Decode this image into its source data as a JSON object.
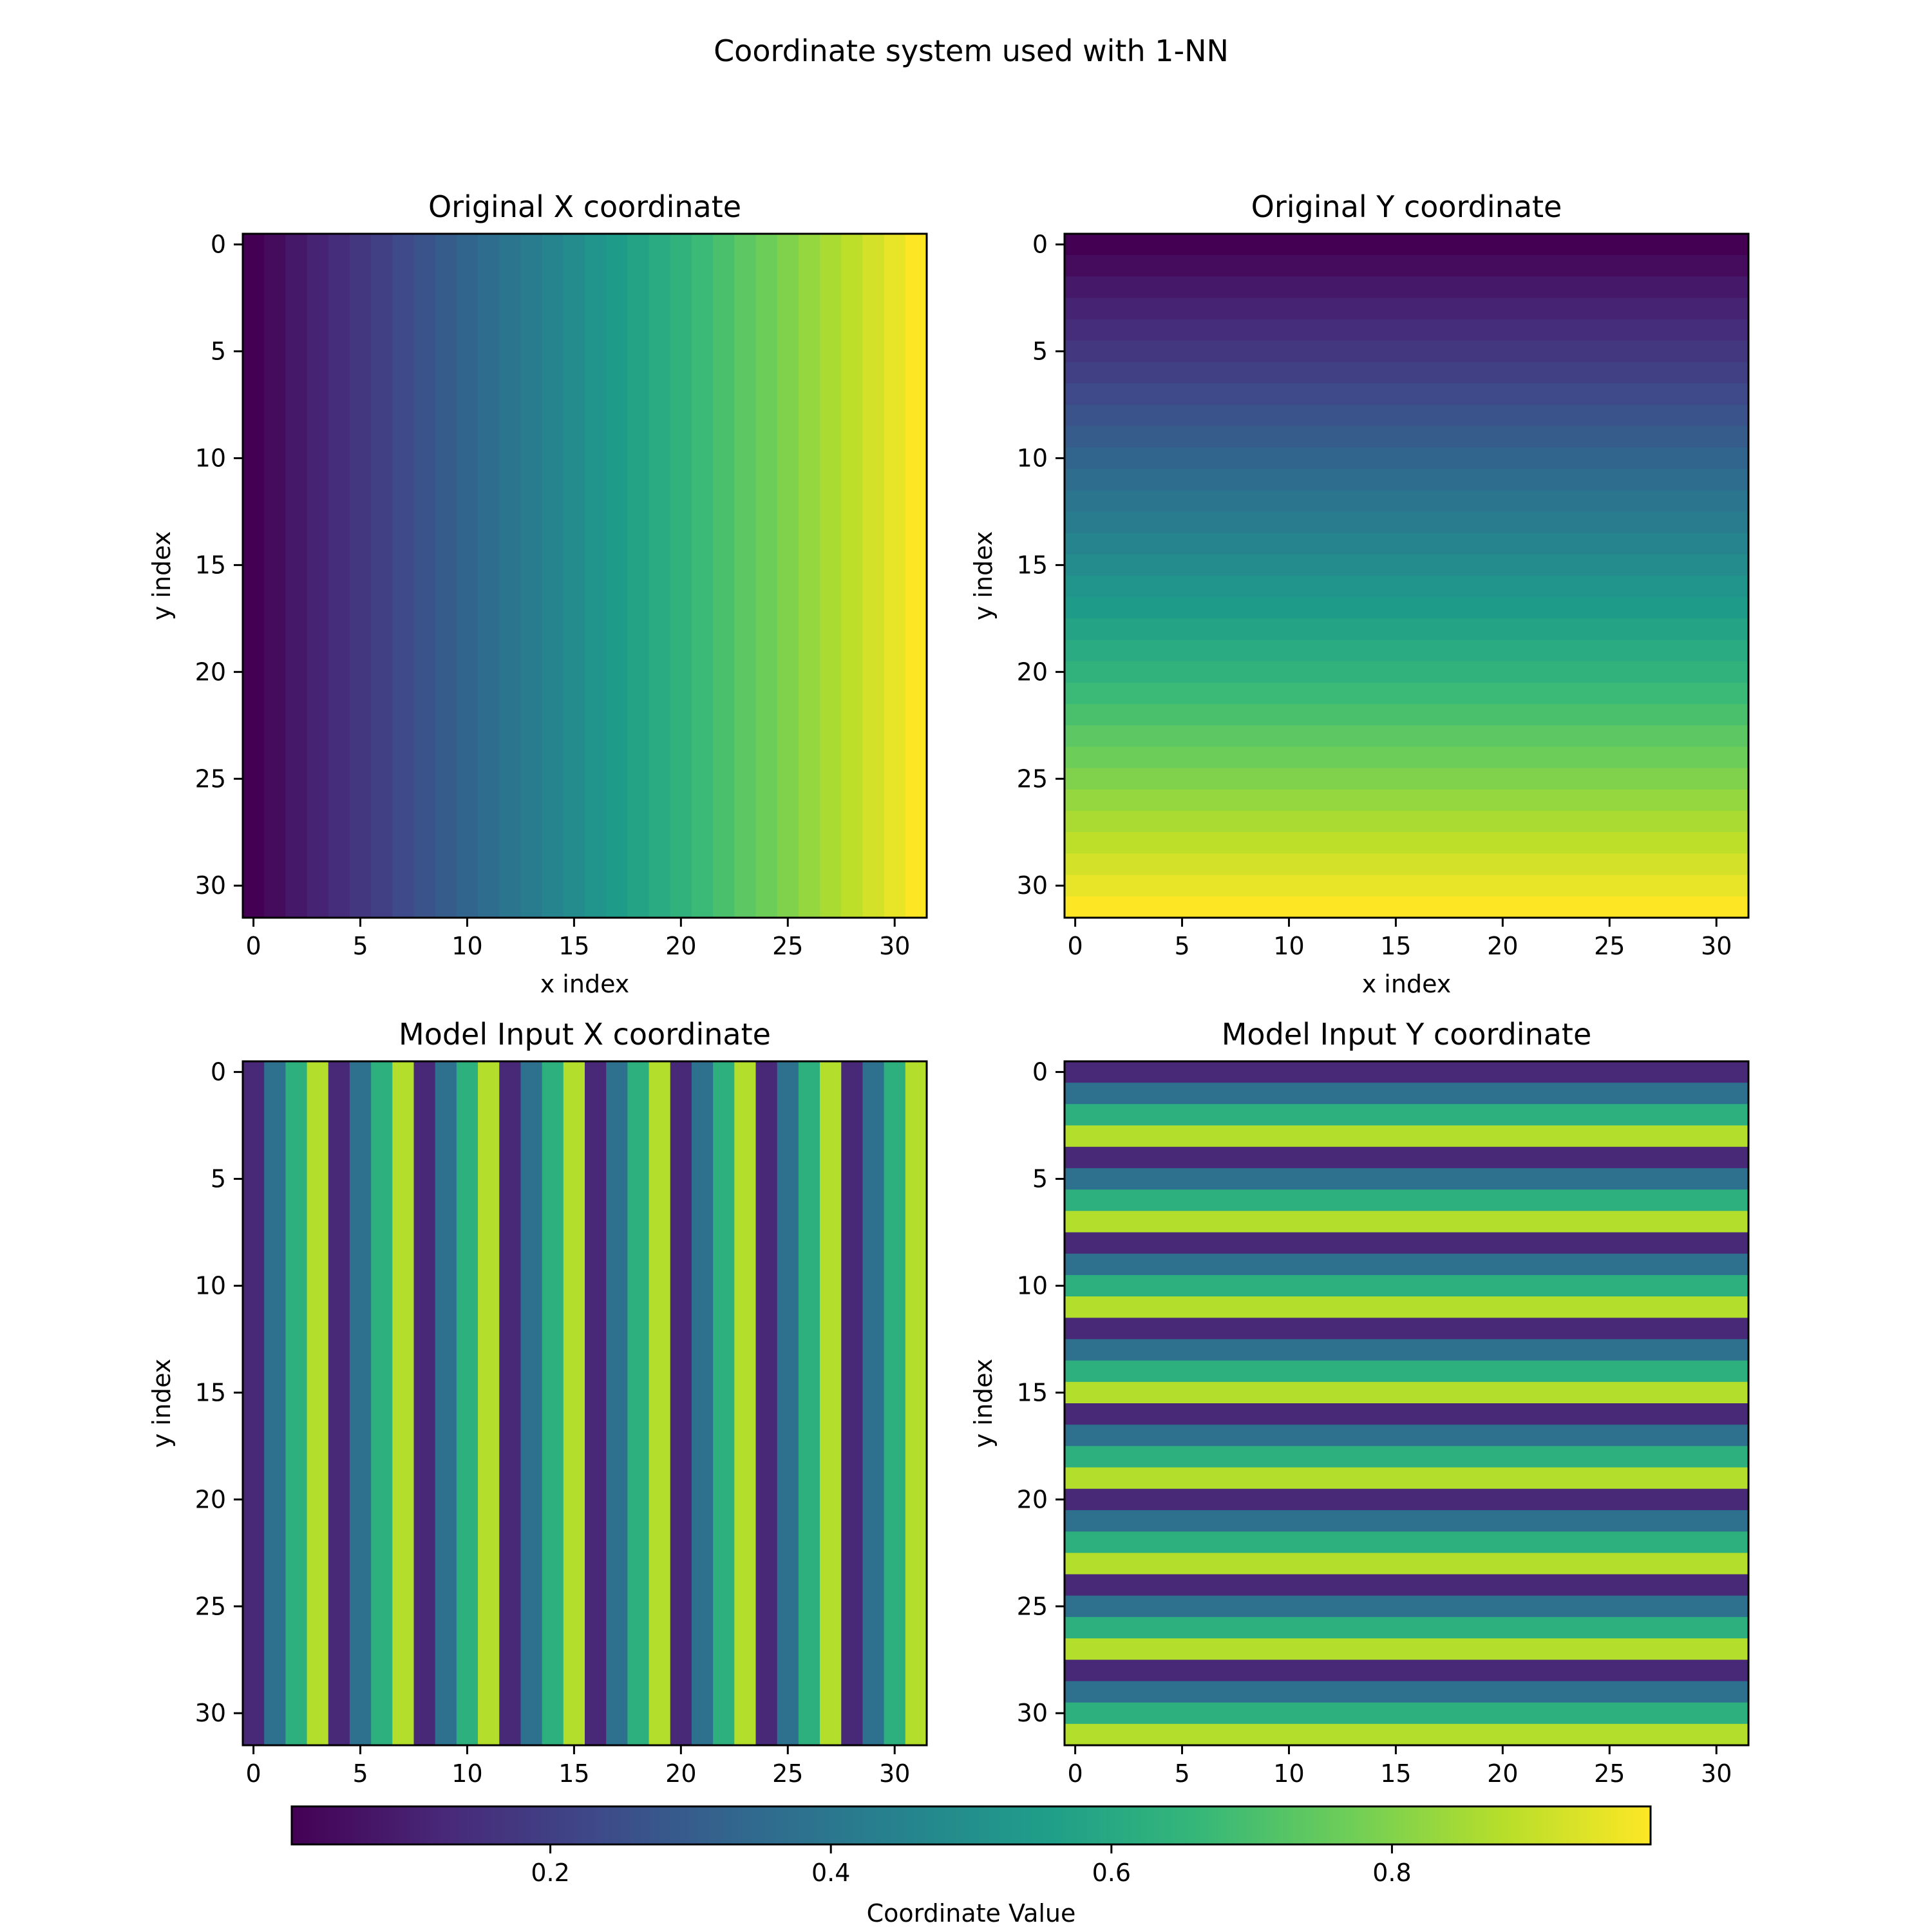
{
  "figure": {
    "title": "Coordinate system used with 1-NN"
  },
  "chart_data": [
    {
      "type": "heatmap",
      "title": "Original X coordinate",
      "xlabel": "x index",
      "ylabel": "y index",
      "grid_size": 32,
      "pattern": "columns",
      "formula": "value = (x + 0.5) / 32",
      "xlim": [
        -0.5,
        31.5
      ],
      "ylim": [
        31.5,
        -0.5
      ],
      "xticks": [
        0,
        5,
        10,
        15,
        20,
        25,
        30
      ],
      "yticks": [
        0,
        5,
        10,
        15,
        20,
        25,
        30
      ],
      "values": [
        0.015625,
        0.046875,
        0.078125,
        0.109375,
        0.140625,
        0.171875,
        0.203125,
        0.234375,
        0.265625,
        0.296875,
        0.328125,
        0.359375,
        0.390625,
        0.421875,
        0.453125,
        0.484375,
        0.515625,
        0.546875,
        0.578125,
        0.609375,
        0.640625,
        0.671875,
        0.703125,
        0.734375,
        0.765625,
        0.796875,
        0.828125,
        0.859375,
        0.890625,
        0.921875,
        0.953125,
        0.984375
      ]
    },
    {
      "type": "heatmap",
      "title": "Original Y coordinate",
      "xlabel": "x index",
      "ylabel": "y index",
      "grid_size": 32,
      "pattern": "rows",
      "formula": "value = (y + 0.5) / 32",
      "xlim": [
        -0.5,
        31.5
      ],
      "ylim": [
        31.5,
        -0.5
      ],
      "xticks": [
        0,
        5,
        10,
        15,
        20,
        25,
        30
      ],
      "yticks": [
        0,
        5,
        10,
        15,
        20,
        25,
        30
      ],
      "values": [
        0.015625,
        0.046875,
        0.078125,
        0.109375,
        0.140625,
        0.171875,
        0.203125,
        0.234375,
        0.265625,
        0.296875,
        0.328125,
        0.359375,
        0.390625,
        0.421875,
        0.453125,
        0.484375,
        0.515625,
        0.546875,
        0.578125,
        0.609375,
        0.640625,
        0.671875,
        0.703125,
        0.734375,
        0.765625,
        0.796875,
        0.828125,
        0.859375,
        0.890625,
        0.921875,
        0.953125,
        0.984375
      ]
    },
    {
      "type": "heatmap",
      "title": "Model Input X coordinate",
      "xlabel": "",
      "ylabel": "y index",
      "grid_size": 32,
      "pattern": "columns",
      "formula": "value = ((x mod 4) + 0.5) / 4",
      "xlim": [
        -0.5,
        31.5
      ],
      "ylim": [
        31.5,
        -0.5
      ],
      "xticks": [
        0,
        5,
        10,
        15,
        20,
        25,
        30
      ],
      "yticks": [
        0,
        5,
        10,
        15,
        20,
        25,
        30
      ],
      "values": [
        0.125,
        0.375,
        0.625,
        0.875,
        0.125,
        0.375,
        0.625,
        0.875,
        0.125,
        0.375,
        0.625,
        0.875,
        0.125,
        0.375,
        0.625,
        0.875,
        0.125,
        0.375,
        0.625,
        0.875,
        0.125,
        0.375,
        0.625,
        0.875,
        0.125,
        0.375,
        0.625,
        0.875,
        0.125,
        0.375,
        0.625,
        0.875
      ]
    },
    {
      "type": "heatmap",
      "title": "Model Input Y coordinate",
      "xlabel": "",
      "ylabel": "y index",
      "grid_size": 32,
      "pattern": "rows",
      "formula": "value = ((y mod 4) + 0.5) / 4",
      "xlim": [
        -0.5,
        31.5
      ],
      "ylim": [
        31.5,
        -0.5
      ],
      "xticks": [
        0,
        5,
        10,
        15,
        20,
        25,
        30
      ],
      "yticks": [
        0,
        5,
        10,
        15,
        20,
        25,
        30
      ],
      "values": [
        0.125,
        0.375,
        0.625,
        0.875,
        0.125,
        0.375,
        0.625,
        0.875,
        0.125,
        0.375,
        0.625,
        0.875,
        0.125,
        0.375,
        0.625,
        0.875,
        0.125,
        0.375,
        0.625,
        0.875,
        0.125,
        0.375,
        0.625,
        0.875,
        0.125,
        0.375,
        0.625,
        0.875,
        0.125,
        0.375,
        0.625,
        0.875
      ]
    }
  ],
  "colorbar": {
    "label": "Coordinate Value",
    "orientation": "horizontal",
    "location": "bottom",
    "colormap": "viridis",
    "range": [
      0.015625,
      0.984375
    ],
    "ticks": [
      0.2,
      0.4,
      0.6,
      0.8
    ],
    "tick_labels": [
      "0.2",
      "0.4",
      "0.6",
      "0.8"
    ]
  },
  "colormap_stops": [
    "#440154",
    "#482878",
    "#3e4989",
    "#31688e",
    "#26828e",
    "#1f9e89",
    "#35b779",
    "#6ece58",
    "#b5de2b",
    "#fde725"
  ]
}
